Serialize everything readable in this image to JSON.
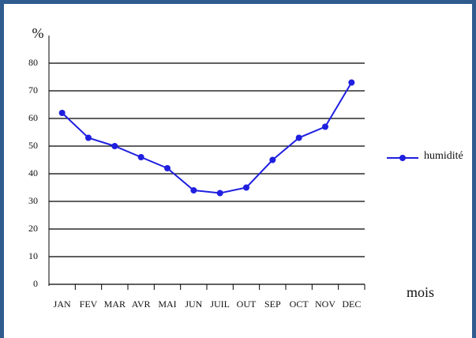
{
  "chart_data": {
    "type": "line",
    "y_label": "%",
    "x_label": "mois",
    "categories": [
      "JAN",
      "FEV",
      "MAR",
      "AVR",
      "MAI",
      "JUN",
      "JUIL",
      "OUT",
      "SEP",
      "OCT",
      "NOV",
      "DEC"
    ],
    "series": [
      {
        "name": "humidité",
        "color": "#1f1fe0",
        "values": [
          62,
          53,
          50,
          46,
          42,
          34,
          33,
          35,
          45,
          53,
          57,
          73
        ]
      }
    ],
    "ylim": [
      0,
      80
    ],
    "yticks": [
      0,
      10,
      20,
      30,
      40,
      50,
      60,
      70,
      80
    ],
    "grid": true,
    "legend": "right"
  }
}
